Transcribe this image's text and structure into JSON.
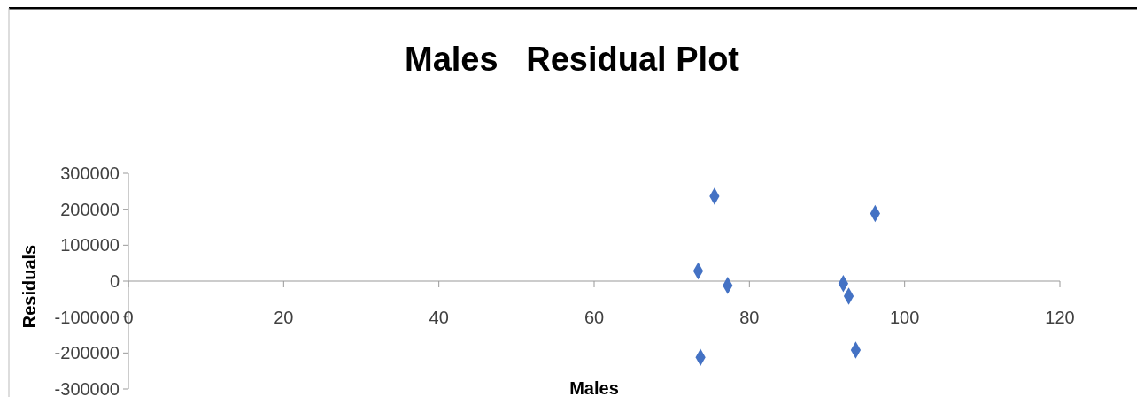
{
  "chart_data": {
    "type": "scatter",
    "title": "Males   Residual Plot",
    "xlabel": "Males",
    "ylabel": "Residuals",
    "x": [
      75.5,
      96.2,
      73.4,
      77.2,
      92.1,
      92.8,
      73.7,
      93.7
    ],
    "series": [
      {
        "color": "#4472c4",
        "values": [
          236000,
          188000,
          28000,
          -12000,
          -7000,
          -42000,
          -212000,
          -192000
        ]
      }
    ],
    "xlim": [
      0,
      120
    ],
    "xticks": [
      0,
      20,
      40,
      60,
      80,
      100,
      120
    ],
    "ylim": [
      -300000,
      300000
    ],
    "yticks": [
      -300000,
      -200000,
      -100000,
      0,
      100000,
      200000,
      300000
    ],
    "grid": false,
    "marker": "diamond"
  }
}
